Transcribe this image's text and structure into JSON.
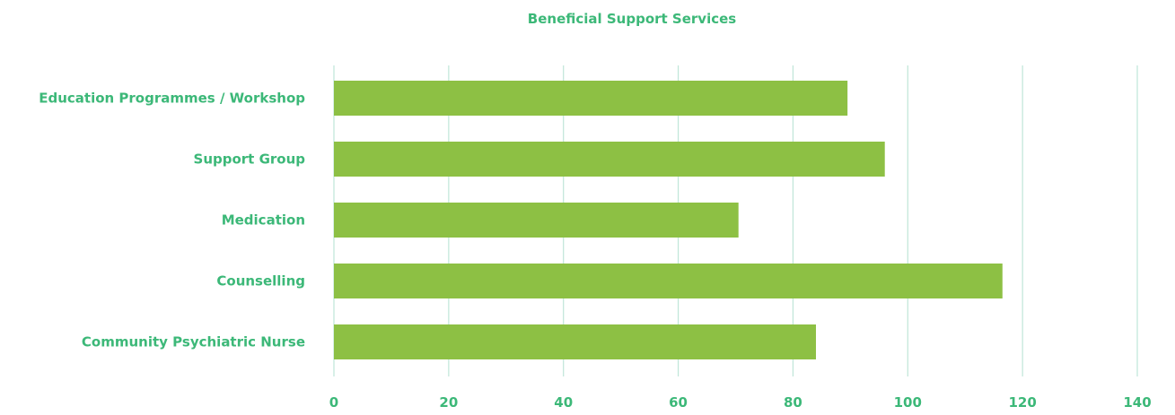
{
  "colors": {
    "text": "#3cb878",
    "bar": "#8dc044",
    "grid": "#bfe6d8",
    "background": "#ffffff"
  },
  "chart_data": {
    "type": "bar",
    "orientation": "horizontal",
    "title": "Beneficial Support Services",
    "xlabel": "",
    "ylabel": "",
    "categories": [
      "Education Programmes / Workshop",
      "Support Group",
      "Medication",
      "Counselling",
      "Community Psychiatric Nurse"
    ],
    "values": [
      89.5,
      96,
      70.5,
      116.5,
      84
    ],
    "xlim": [
      0,
      140
    ],
    "xticks": [
      "0",
      "20",
      "40",
      "60",
      "80",
      "100",
      "120",
      "140"
    ],
    "grid": "vertical",
    "legend": "none"
  }
}
